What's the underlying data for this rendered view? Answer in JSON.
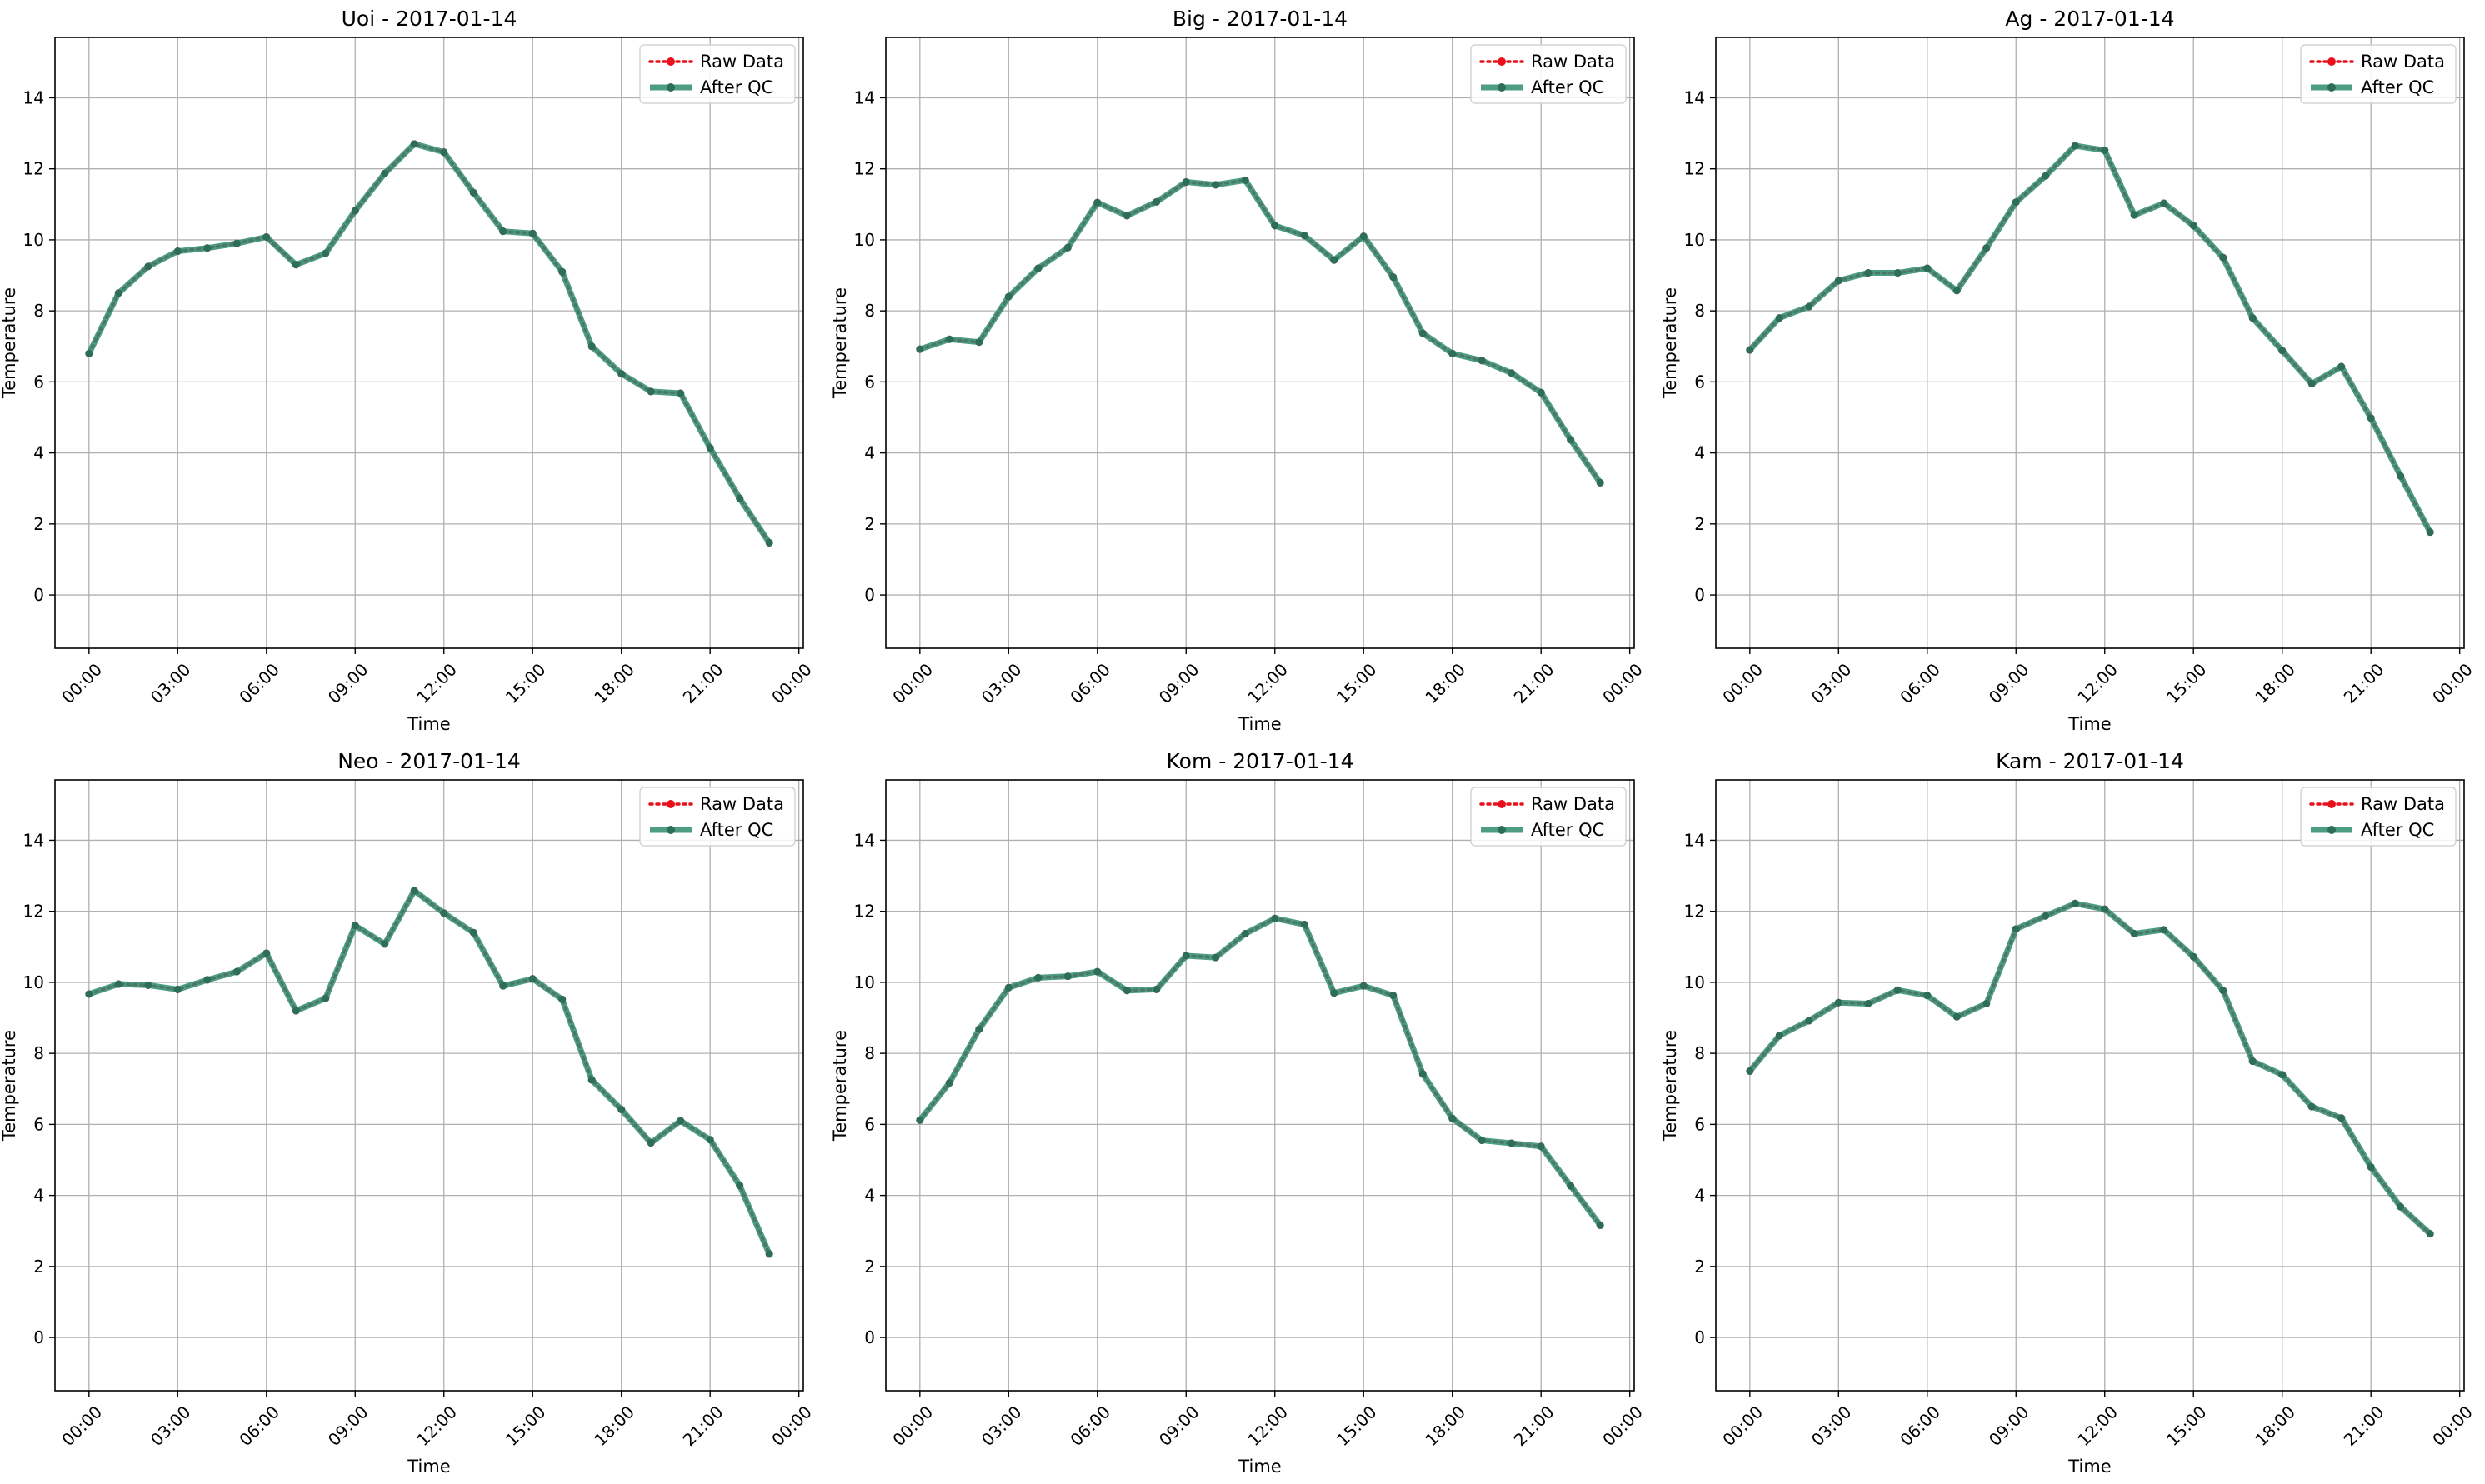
{
  "figure": {
    "x_ticks": [
      "00:00",
      "03:00",
      "06:00",
      "09:00",
      "12:00",
      "15:00",
      "18:00",
      "21:00",
      "00:00"
    ],
    "y_ticks": [
      "0",
      "2",
      "4",
      "6",
      "8",
      "10",
      "12",
      "14"
    ]
  },
  "colors": {
    "raw": "#e8111b",
    "qc": "#2e8b6f",
    "qc_marker": "#2c6e57",
    "grid": "#b0b0b0",
    "axes": "#000000"
  },
  "chart_data": [
    {
      "type": "line",
      "title": "Uoi - 2017-01-14",
      "xlabel": "Time",
      "ylabel": "Temperature",
      "ylim": [
        -1.5,
        15.7
      ],
      "xlim_hours": [
        -1.15,
        24.15
      ],
      "grid": true,
      "legend": "top-right",
      "x_hours": [
        0,
        1,
        2,
        3,
        4,
        5,
        6,
        7,
        8,
        9,
        10,
        11,
        12,
        13,
        14,
        15,
        16,
        17,
        18,
        19,
        20,
        21,
        22,
        23
      ],
      "series": [
        {
          "name": "Raw Data",
          "style": "dotted",
          "values": [
            6.8,
            8.5,
            9.25,
            9.68,
            9.77,
            9.9,
            10.08,
            9.3,
            9.62,
            10.82,
            11.87,
            12.7,
            12.47,
            11.33,
            10.24,
            10.18,
            9.1,
            7.0,
            6.23,
            5.73,
            5.68,
            4.14,
            2.72,
            1.47
          ]
        },
        {
          "name": "After QC",
          "style": "solid",
          "values": [
            6.8,
            8.5,
            9.25,
            9.68,
            9.77,
            9.9,
            10.08,
            9.3,
            9.62,
            10.82,
            11.87,
            12.7,
            12.47,
            11.33,
            10.24,
            10.18,
            9.1,
            7.0,
            6.23,
            5.73,
            5.68,
            4.14,
            2.72,
            1.47
          ]
        }
      ]
    },
    {
      "type": "line",
      "title": "Big - 2017-01-14",
      "xlabel": "Time",
      "ylabel": "Temperature",
      "ylim": [
        -1.5,
        15.7
      ],
      "xlim_hours": [
        -1.15,
        24.15
      ],
      "grid": true,
      "legend": "top-right",
      "x_hours": [
        0,
        1,
        2,
        3,
        4,
        5,
        6,
        7,
        8,
        9,
        10,
        11,
        12,
        13,
        14,
        15,
        16,
        17,
        18,
        19,
        20,
        21,
        22,
        23
      ],
      "series": [
        {
          "name": "Raw Data",
          "style": "dotted",
          "values": [
            6.92,
            7.2,
            7.12,
            8.4,
            9.2,
            9.78,
            11.05,
            10.68,
            11.07,
            11.63,
            11.55,
            11.68,
            10.4,
            10.12,
            9.43,
            10.1,
            8.95,
            7.37,
            6.8,
            6.6,
            6.25,
            5.7,
            4.37,
            3.16
          ]
        },
        {
          "name": "After QC",
          "style": "solid",
          "values": [
            6.92,
            7.2,
            7.12,
            8.4,
            9.2,
            9.78,
            11.05,
            10.68,
            11.07,
            11.63,
            11.55,
            11.68,
            10.4,
            10.12,
            9.43,
            10.1,
            8.95,
            7.37,
            6.8,
            6.6,
            6.25,
            5.7,
            4.37,
            3.16
          ]
        }
      ]
    },
    {
      "type": "line",
      "title": "Ag - 2017-01-14",
      "xlabel": "Time",
      "ylabel": "Temperature",
      "ylim": [
        -1.5,
        15.7
      ],
      "xlim_hours": [
        -1.15,
        24.15
      ],
      "grid": true,
      "legend": "top-right",
      "x_hours": [
        0,
        1,
        2,
        3,
        4,
        5,
        6,
        7,
        8,
        9,
        10,
        11,
        12,
        13,
        14,
        15,
        16,
        17,
        18,
        19,
        20,
        21,
        22,
        23
      ],
      "series": [
        {
          "name": "Raw Data",
          "style": "dotted",
          "values": [
            6.9,
            7.8,
            8.12,
            8.85,
            9.07,
            9.07,
            9.2,
            8.57,
            9.77,
            11.06,
            11.8,
            12.65,
            12.52,
            10.7,
            11.03,
            10.4,
            9.5,
            7.8,
            6.88,
            5.95,
            6.43,
            4.98,
            3.35,
            1.77
          ]
        },
        {
          "name": "After QC",
          "style": "solid",
          "values": [
            6.9,
            7.8,
            8.12,
            8.85,
            9.07,
            9.07,
            9.2,
            8.57,
            9.77,
            11.06,
            11.8,
            12.65,
            12.52,
            10.7,
            11.03,
            10.4,
            9.5,
            7.8,
            6.88,
            5.95,
            6.43,
            4.98,
            3.35,
            1.77
          ]
        }
      ]
    },
    {
      "type": "line",
      "title": "Neo - 2017-01-14",
      "xlabel": "Time",
      "ylabel": "Temperature",
      "ylim": [
        -1.5,
        15.7
      ],
      "xlim_hours": [
        -1.15,
        24.15
      ],
      "grid": true,
      "legend": "top-right",
      "x_hours": [
        0,
        1,
        2,
        3,
        4,
        5,
        6,
        7,
        8,
        9,
        10,
        11,
        12,
        13,
        14,
        15,
        16,
        17,
        18,
        19,
        20,
        21,
        22,
        23
      ],
      "series": [
        {
          "name": "Raw Data",
          "style": "dotted",
          "values": [
            9.67,
            9.95,
            9.92,
            9.8,
            10.07,
            10.3,
            10.82,
            9.2,
            9.55,
            11.6,
            11.08,
            12.58,
            11.95,
            11.4,
            9.9,
            10.1,
            9.52,
            7.25,
            6.42,
            5.48,
            6.1,
            5.57,
            4.28,
            2.35
          ]
        },
        {
          "name": "After QC",
          "style": "solid",
          "values": [
            9.67,
            9.95,
            9.92,
            9.8,
            10.07,
            10.3,
            10.82,
            9.2,
            9.55,
            11.6,
            11.08,
            12.58,
            11.95,
            11.4,
            9.9,
            10.1,
            9.52,
            7.25,
            6.42,
            5.48,
            6.1,
            5.57,
            4.28,
            2.35
          ]
        }
      ]
    },
    {
      "type": "line",
      "title": "Kom - 2017-01-14",
      "xlabel": "Time",
      "ylabel": "Temperature",
      "ylim": [
        -1.5,
        15.7
      ],
      "xlim_hours": [
        -1.15,
        24.15
      ],
      "grid": true,
      "legend": "top-right",
      "x_hours": [
        0,
        1,
        2,
        3,
        4,
        5,
        6,
        7,
        8,
        9,
        10,
        11,
        12,
        13,
        14,
        15,
        16,
        17,
        18,
        19,
        20,
        21,
        22,
        23
      ],
      "series": [
        {
          "name": "Raw Data",
          "style": "dotted",
          "values": [
            6.12,
            7.17,
            8.68,
            9.85,
            10.13,
            10.17,
            10.3,
            9.77,
            9.8,
            10.75,
            10.7,
            11.37,
            11.8,
            11.63,
            9.7,
            9.9,
            9.63,
            7.42,
            6.17,
            5.55,
            5.47,
            5.38,
            4.27,
            3.16
          ]
        },
        {
          "name": "After QC",
          "style": "solid",
          "values": [
            6.12,
            7.17,
            8.68,
            9.85,
            10.13,
            10.17,
            10.3,
            9.77,
            9.8,
            10.75,
            10.7,
            11.37,
            11.8,
            11.63,
            9.7,
            9.9,
            9.63,
            7.42,
            6.17,
            5.55,
            5.47,
            5.38,
            4.27,
            3.16
          ]
        }
      ]
    },
    {
      "type": "line",
      "title": "Kam - 2017-01-14",
      "xlabel": "Time",
      "ylabel": "Temperature",
      "ylim": [
        -1.5,
        15.7
      ],
      "xlim_hours": [
        -1.15,
        24.15
      ],
      "grid": true,
      "legend": "top-right",
      "x_hours": [
        0,
        1,
        2,
        3,
        4,
        5,
        6,
        7,
        8,
        9,
        10,
        11,
        12,
        13,
        14,
        15,
        16,
        17,
        18,
        19,
        20,
        21,
        22,
        23
      ],
      "series": [
        {
          "name": "Raw Data",
          "style": "dotted",
          "values": [
            7.5,
            8.5,
            8.92,
            9.43,
            9.4,
            9.78,
            9.63,
            9.03,
            9.4,
            11.5,
            11.87,
            12.22,
            12.06,
            11.37,
            11.48,
            10.72,
            9.77,
            7.78,
            7.4,
            6.5,
            6.18,
            4.8,
            3.68,
            2.92
          ]
        },
        {
          "name": "After QC",
          "style": "solid",
          "values": [
            7.5,
            8.5,
            8.92,
            9.43,
            9.4,
            9.78,
            9.63,
            9.03,
            9.4,
            11.5,
            11.87,
            12.22,
            12.06,
            11.37,
            11.48,
            10.72,
            9.77,
            7.78,
            7.4,
            6.5,
            6.18,
            4.8,
            3.68,
            2.92
          ]
        }
      ]
    }
  ]
}
